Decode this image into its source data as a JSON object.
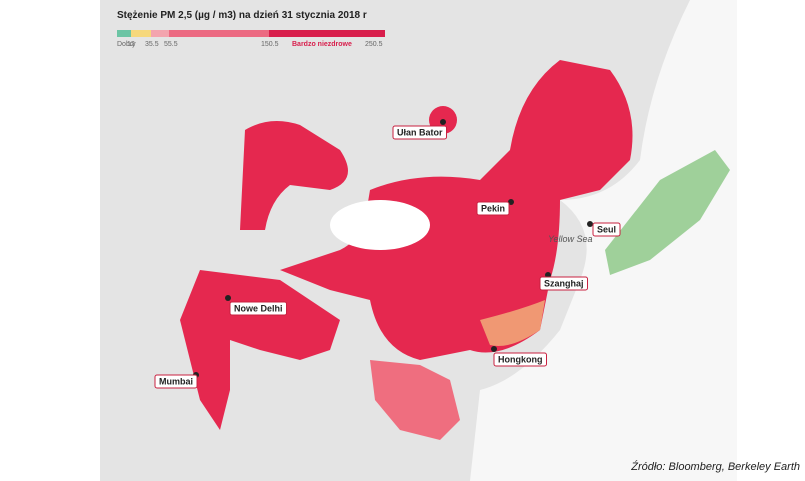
{
  "title": "Stężenie PM 2,5 (µg / m3) na dzień 31 stycznia 2018 r",
  "legend": {
    "good_label": "Dobry",
    "very_unhealthy_label": "Bardzo niezdrowe",
    "thresholds": [
      12,
      35.5,
      55.5,
      150.5,
      250.5
    ]
  },
  "cities": [
    {
      "label": "Ułan Bator"
    },
    {
      "label": "Pekin"
    },
    {
      "label": "Seul"
    },
    {
      "label": "Szanghaj"
    },
    {
      "label": "Nowe Delhi"
    },
    {
      "label": "Hongkong"
    },
    {
      "label": "Mumbai"
    }
  ],
  "sea_label": "Yellow Sea",
  "source": "Źródło:  Bloomberg, Berkeley Earth"
}
